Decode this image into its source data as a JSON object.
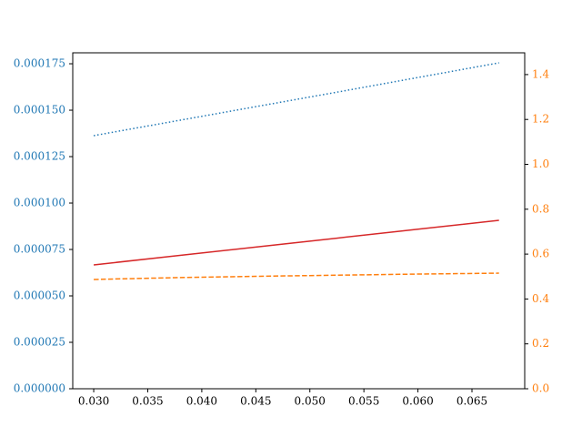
{
  "chart_data": {
    "type": "line",
    "x": [
      0.03,
      0.0375,
      0.045,
      0.0525,
      0.06,
      0.0675
    ],
    "series": [
      {
        "color": "#1f77b4",
        "linestyle": "dotted",
        "axis": "y",
        "values": [
          0.0001363,
          0.0001441,
          0.0001519,
          0.0001597,
          0.0001676,
          0.0001755
        ]
      },
      {
        "color": "#d62728",
        "linestyle": "solid",
        "axis": "y",
        "values": [
          6.67e-05,
          7.15e-05,
          7.63e-05,
          8.11e-05,
          8.59e-05,
          9.07e-05
        ]
      },
      {
        "color": "#ff7f0e",
        "linestyle": "dashed",
        "axis": "y2",
        "values": [
          0.487,
          0.495,
          0.501,
          0.506,
          0.511,
          0.515
        ]
      }
    ],
    "xlim": [
      0.02806,
      0.06988
    ],
    "xticks": [
      {
        "value": 0.03,
        "label": "0.030"
      },
      0.035,
      {
        "value": 0.04,
        "label": "0.040"
      },
      0.045,
      {
        "value": 0.05,
        "label": "0.050"
      },
      0.055,
      {
        "value": 0.06,
        "label": "0.060"
      },
      0.065
    ],
    "ylim": [
      0,
      0.0001809
    ],
    "yticks": [
      {
        "value": 0,
        "label": "0.000000"
      },
      {
        "value": 2.5e-05,
        "label": "0.000025"
      },
      {
        "value": 5e-05,
        "label": "0.000050"
      },
      {
        "value": 7.5e-05,
        "label": "0.000075"
      },
      {
        "value": 0.0001,
        "label": "0.000100"
      },
      {
        "value": 0.000125,
        "label": "0.000125"
      },
      {
        "value": 0.00015,
        "label": "0.000150"
      },
      {
        "value": 0.000175,
        "label": "0.000175"
      }
    ],
    "y_tick_color": "#1f77b4",
    "y2lim": [
      0,
      1.497
    ],
    "y2ticks": [
      {
        "value": 0,
        "label": "0.0"
      },
      0.2,
      0.4,
      0.6,
      0.8,
      {
        "value": 1,
        "label": "1.0"
      },
      1.2,
      1.4
    ],
    "y2_tick_color": "#ff7f0e",
    "grid": false
  }
}
